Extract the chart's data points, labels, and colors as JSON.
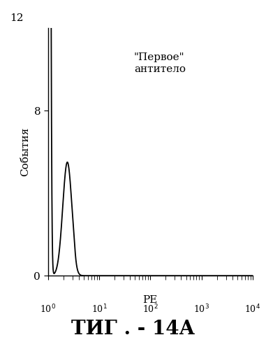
{
  "title_below": "ΤИГ . - 14А",
  "ylabel": "События",
  "xlabel": "PE",
  "annotation_line1": "\"Первое\"",
  "annotation_line2": "антитело",
  "xlim_log": [
    0,
    4
  ],
  "ylim": [
    0,
    12
  ],
  "ytick_top": 12,
  "ytick_mid": 8,
  "ytick_bot": 0,
  "line_color": "#000000",
  "background_color": "#ffffff",
  "fig_width": 3.81,
  "fig_height": 4.99,
  "dpi": 100
}
